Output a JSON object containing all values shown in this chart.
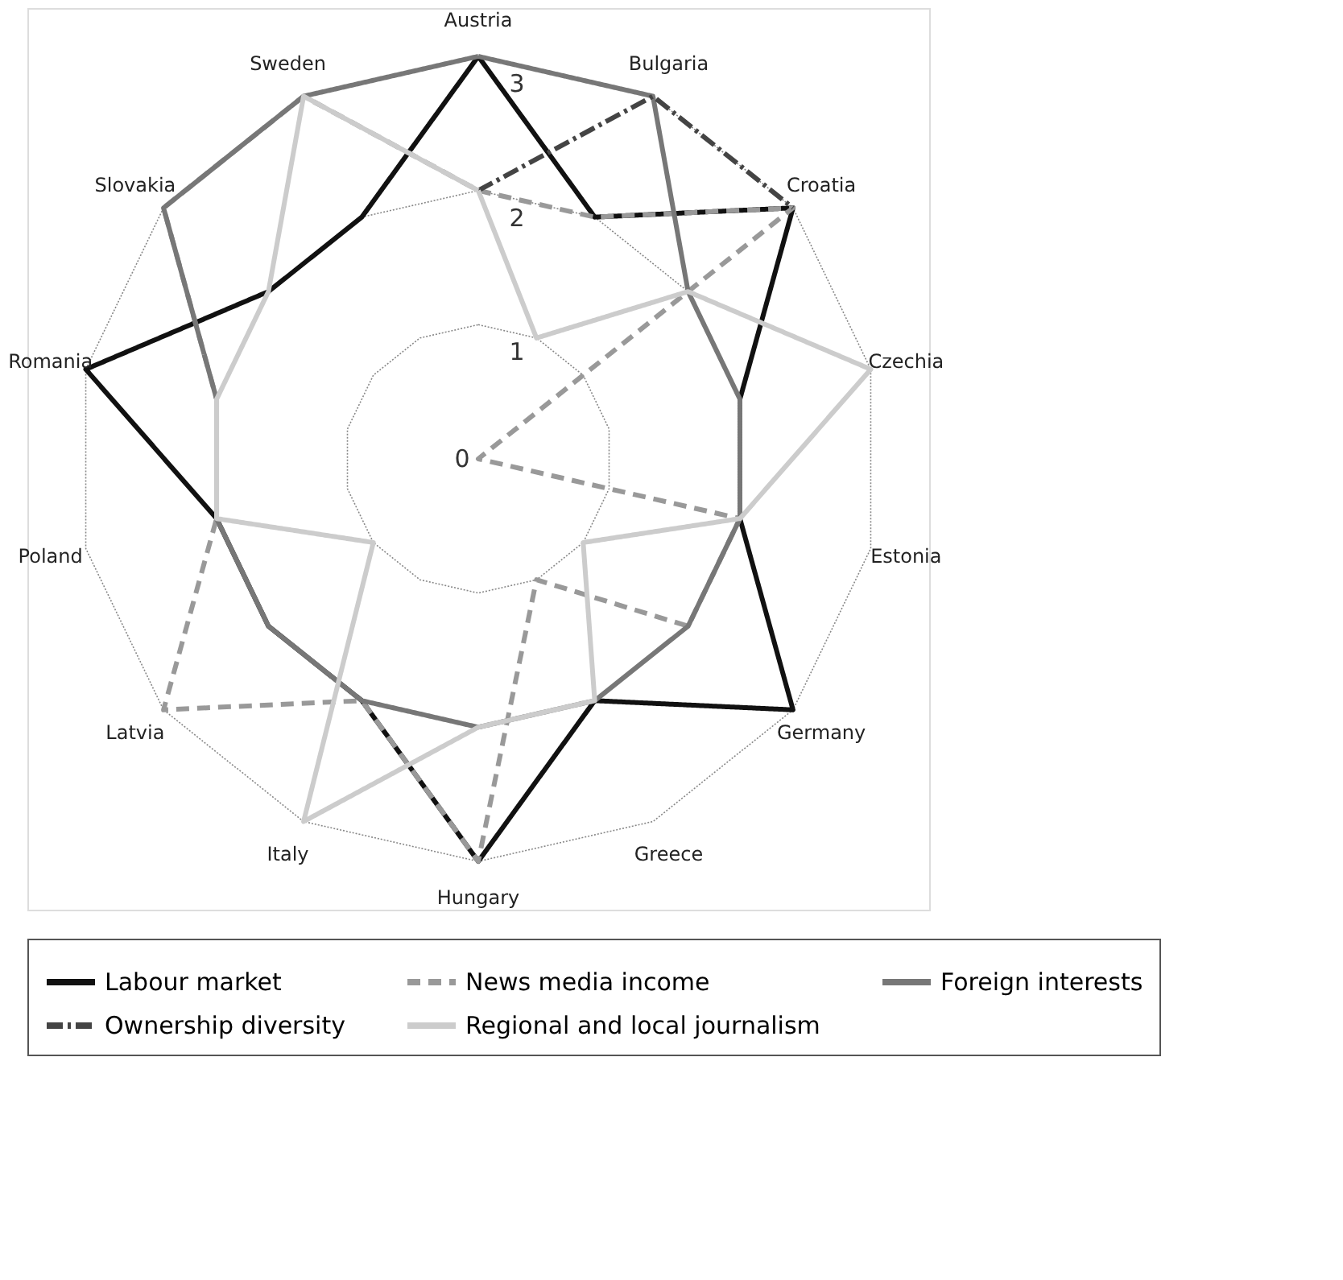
{
  "chart_data": {
    "type": "radar",
    "categories": [
      "Austria",
      "Bulgaria",
      "Croatia",
      "Czechia",
      "Estonia",
      "Germany",
      "Greece",
      "Hungary",
      "Italy",
      "Latvia",
      "Poland",
      "Romania",
      "Slovakia",
      "Sweden"
    ],
    "ylim": [
      0,
      3
    ],
    "yticks": [
      0,
      1,
      2,
      3
    ],
    "grid": true,
    "legend": "bottom",
    "series": [
      {
        "name": "Labour market",
        "color": "#111111",
        "line_style": "solid",
        "values": [
          3,
          2,
          3,
          2,
          2,
          3,
          2,
          3,
          2,
          2,
          2,
          3,
          2,
          2
        ]
      },
      {
        "name": "News media income",
        "color": "#999999",
        "line_style": "dashed",
        "values": [
          2,
          2,
          3,
          0,
          2,
          2,
          1,
          3,
          2,
          3,
          2,
          2,
          3,
          3
        ]
      },
      {
        "name": "Foreign interests",
        "color": "#777777",
        "line_style": "solid",
        "values": [
          3,
          3,
          2,
          2,
          2,
          2,
          2,
          2,
          2,
          2,
          2,
          2,
          3,
          3
        ]
      },
      {
        "name": "Ownership diversity",
        "color": "#444444",
        "line_style": "dashdot",
        "values": [
          2,
          3,
          3,
          null,
          null,
          null,
          null,
          null,
          null,
          null,
          null,
          null,
          null,
          null
        ]
      },
      {
        "name": "Regional and local journalism",
        "color": "#cccccc",
        "line_style": "solid",
        "values": [
          2,
          1,
          2,
          3,
          2,
          1,
          2,
          2,
          3,
          1,
          2,
          2,
          2,
          3
        ]
      }
    ]
  }
}
